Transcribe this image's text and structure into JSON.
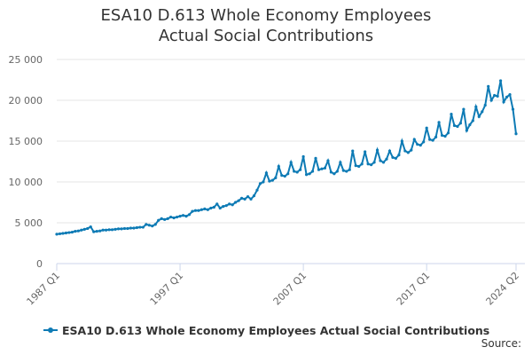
{
  "chart_data": {
    "type": "line",
    "title": "ESA10 D.613 Whole Economy Employees Actual Social Contributions",
    "categories": [
      "1987 Q1",
      null,
      null,
      null,
      null,
      null,
      null,
      null,
      null,
      null,
      null,
      null,
      null,
      null,
      null,
      null,
      null,
      null,
      null,
      null,
      null,
      null,
      null,
      null,
      null,
      null,
      null,
      null,
      null,
      null,
      null,
      null,
      null,
      null,
      null,
      null,
      null,
      null,
      null,
      null,
      "1997 Q1",
      null,
      null,
      null,
      null,
      null,
      null,
      null,
      null,
      null,
      null,
      null,
      null,
      null,
      null,
      null,
      null,
      null,
      null,
      null,
      null,
      null,
      null,
      null,
      null,
      null,
      null,
      null,
      null,
      null,
      null,
      null,
      null,
      null,
      null,
      null,
      null,
      null,
      null,
      null,
      "2007 Q1",
      null,
      null,
      null,
      null,
      null,
      null,
      null,
      null,
      null,
      null,
      null,
      null,
      null,
      null,
      null,
      null,
      null,
      null,
      null,
      null,
      null,
      null,
      null,
      null,
      null,
      null,
      null,
      null,
      null,
      null,
      null,
      null,
      null,
      null,
      null,
      null,
      null,
      null,
      null,
      "2017 Q1",
      null,
      null,
      null,
      null,
      null,
      null,
      null,
      null,
      null,
      null,
      null,
      null,
      null,
      null,
      null,
      null,
      null,
      null,
      null,
      null,
      null,
      null,
      null,
      null,
      null,
      null,
      null,
      null,
      "2024 Q2"
    ],
    "series": [
      {
        "name": "ESA10 D.613 Whole Economy Employees Actual Social Contributions",
        "color": "#0e7bb5",
        "values": [
          3600,
          3650,
          3700,
          3750,
          3800,
          3850,
          3950,
          4000,
          4100,
          4200,
          4300,
          4500,
          3900,
          3950,
          4000,
          4100,
          4100,
          4150,
          4150,
          4200,
          4250,
          4250,
          4300,
          4300,
          4350,
          4350,
          4400,
          4450,
          4450,
          4800,
          4700,
          4600,
          4800,
          5300,
          5500,
          5400,
          5500,
          5700,
          5600,
          5700,
          5800,
          5900,
          5800,
          6000,
          6400,
          6500,
          6500,
          6600,
          6700,
          6600,
          6800,
          6900,
          7300,
          6800,
          7000,
          7100,
          7300,
          7200,
          7500,
          7700,
          8000,
          7900,
          8200,
          7900,
          8300,
          9000,
          9800,
          10000,
          11100,
          10100,
          10200,
          10500,
          11900,
          10800,
          10700,
          11000,
          12400,
          11300,
          11200,
          11500,
          13100,
          10900,
          11000,
          11300,
          12900,
          11500,
          11600,
          11700,
          12600,
          11200,
          11000,
          11300,
          12400,
          11400,
          11300,
          11500,
          13800,
          12000,
          11900,
          12200,
          13700,
          12200,
          12100,
          12400,
          13900,
          12600,
          12400,
          12800,
          13800,
          13000,
          12900,
          13300,
          15000,
          13800,
          13600,
          13900,
          15200,
          14600,
          14500,
          14900,
          16600,
          15200,
          15100,
          15500,
          17300,
          15700,
          15600,
          16000,
          18300,
          16900,
          16800,
          17200,
          18900,
          16300,
          17000,
          17500,
          19200,
          18000,
          18600,
          19400,
          21700,
          20000,
          20600,
          20500,
          22400,
          19800,
          20400,
          20700,
          18900,
          15900
        ]
      }
    ],
    "ylim": [
      0,
      25000
    ],
    "yticks": [
      0,
      {
        "value": 5000,
        "label": "5 000"
      },
      {
        "value": 10000,
        "label": "10 000"
      },
      {
        "value": 15000,
        "label": "15 000"
      },
      {
        "value": 20000,
        "label": "20 000"
      },
      {
        "value": 25000,
        "label": "25 000"
      }
    ],
    "grid": true,
    "legend": "bottom",
    "source": "Source:"
  }
}
